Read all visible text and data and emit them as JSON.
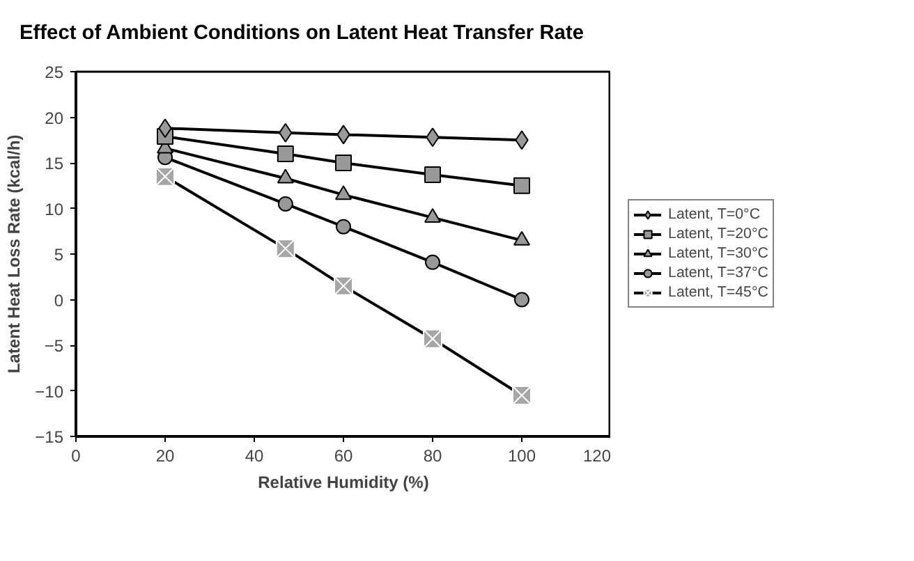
{
  "chart_data": {
    "type": "line",
    "title": "Effect of Ambient Conditions on Latent Heat Transfer Rate",
    "xlabel": "Relative Humidity (%)",
    "ylabel": "Latent Heat Loss Rate (kcal/h)",
    "x": [
      20,
      47,
      60,
      80,
      100
    ],
    "series": [
      {
        "name": "Latent, T=0°C",
        "color": "#999999",
        "marker": "diamond",
        "values": [
          18.8,
          18.3,
          18.1,
          17.8,
          17.5
        ]
      },
      {
        "name": "Latent, T=20°C",
        "color": "#999999",
        "marker": "square",
        "values": [
          17.9,
          16.0,
          15.0,
          13.7,
          12.5
        ]
      },
      {
        "name": "Latent, T=30°C",
        "color": "#999999",
        "marker": "triangle",
        "values": [
          16.6,
          13.3,
          11.5,
          9.0,
          6.5
        ]
      },
      {
        "name": "Latent, T=37°C",
        "color": "#999999",
        "marker": "circle",
        "values": [
          15.6,
          10.5,
          8.0,
          4.1,
          0
        ]
      },
      {
        "name": "Latent, T=45°C",
        "color": "#a6a6a6",
        "marker": "cross",
        "values": [
          13.5,
          5.6,
          1.5,
          -4.3,
          -10.5
        ]
      }
    ],
    "xlim": [
      0,
      120
    ],
    "xticks": [
      0,
      20,
      40,
      60,
      80,
      100,
      120
    ],
    "ylim": [
      -15,
      25
    ],
    "yticks": [
      -15,
      -10,
      -5,
      0,
      5,
      10,
      15,
      20,
      25
    ],
    "grid": false,
    "legend": "right",
    "line_style": "solid"
  }
}
